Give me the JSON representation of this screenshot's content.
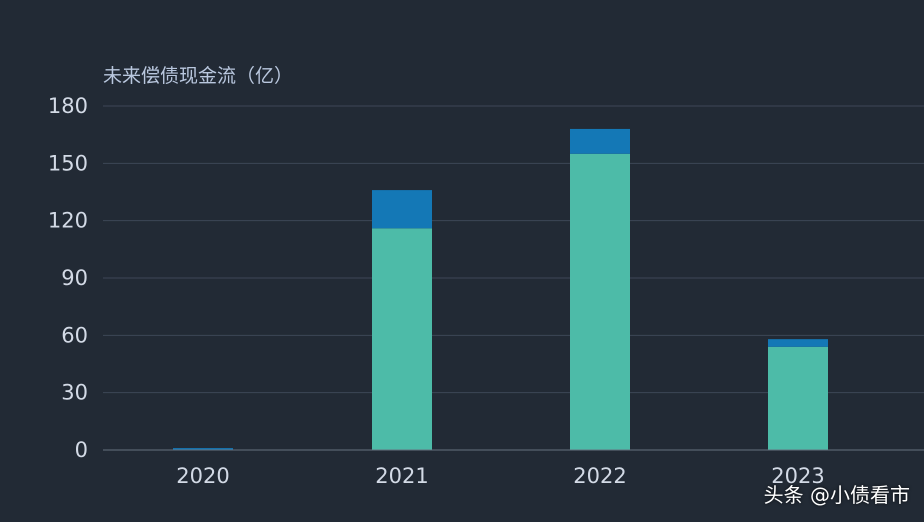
{
  "chart_data": {
    "type": "bar",
    "stacked": true,
    "title": "",
    "ylabel": "未来偿债现金流（亿）",
    "xlabel": "",
    "categories": [
      "2020",
      "2021",
      "2022",
      "2023"
    ],
    "series": [
      {
        "values": [
          0,
          116,
          155,
          54
        ],
        "color": "#4dbba8"
      },
      {
        "values": [
          1,
          20,
          13,
          4
        ],
        "color": "#1478b6"
      }
    ],
    "ylim": [
      0,
      180
    ],
    "yticks": [
      0,
      30,
      60,
      90,
      120,
      150,
      180
    ],
    "grid": true,
    "legend": "none"
  },
  "watermark": {
    "text": "头条 @小债看市"
  }
}
